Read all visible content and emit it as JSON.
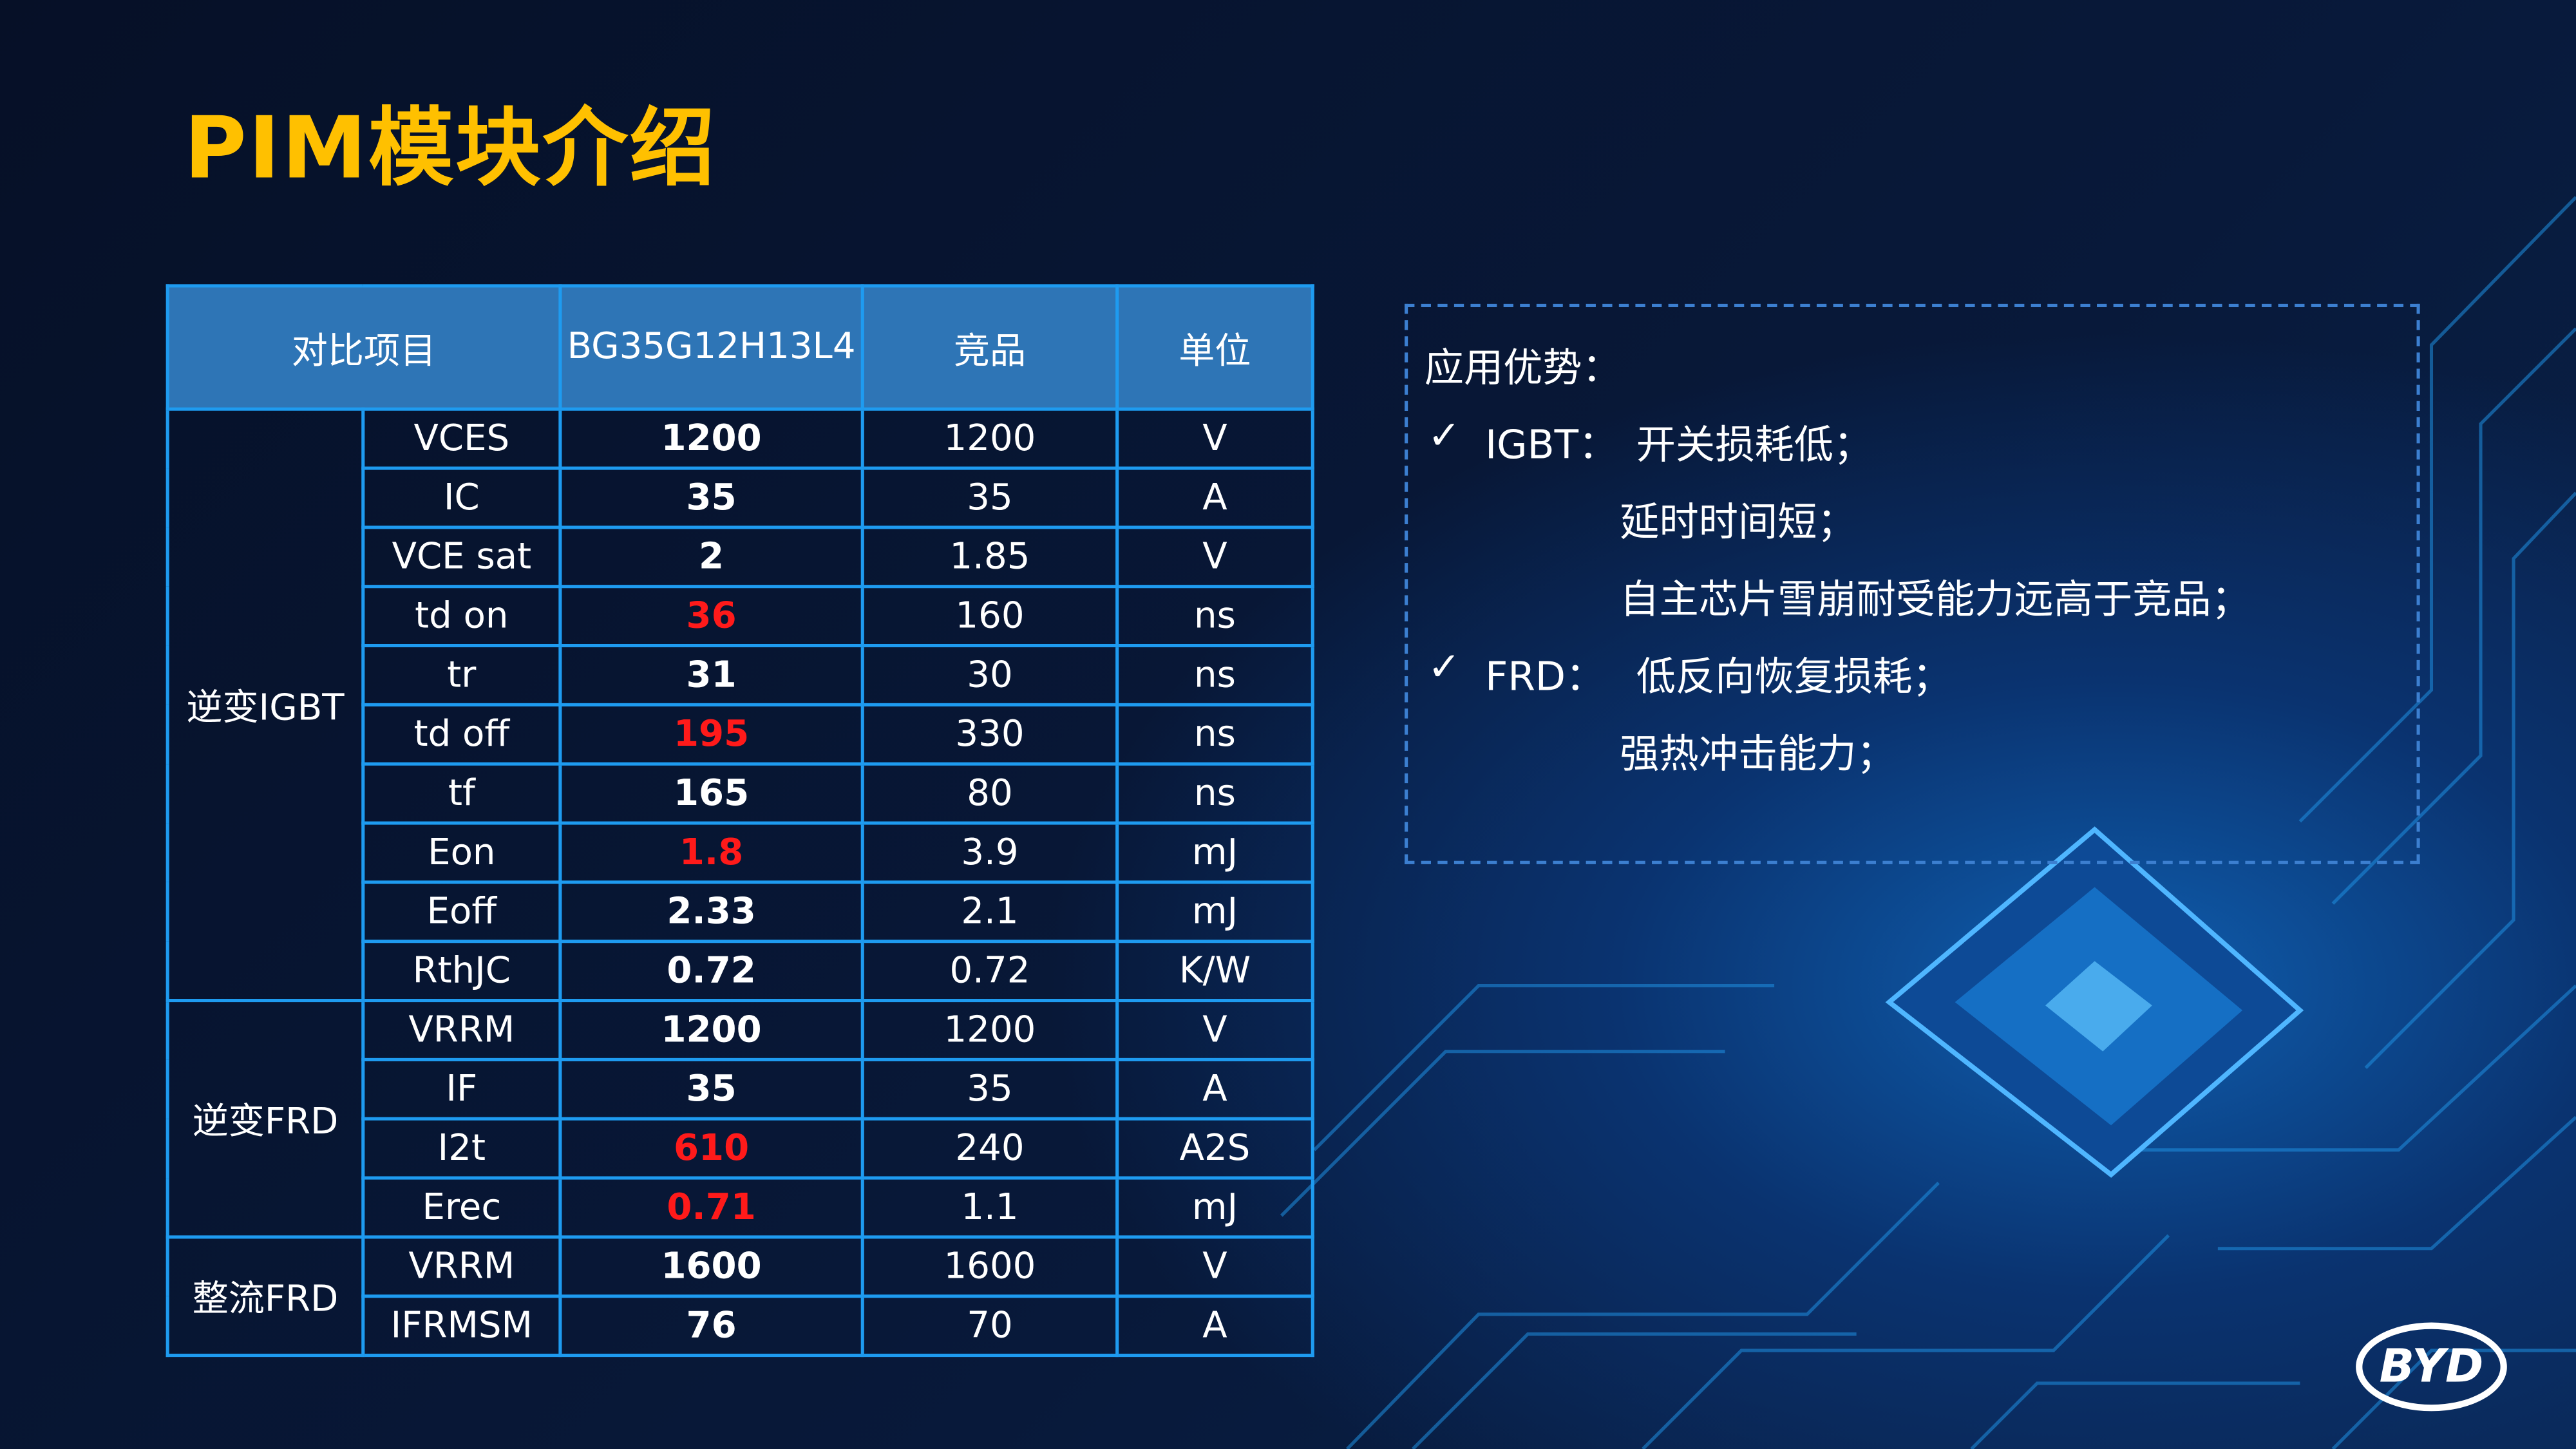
{
  "title": "PIM模块介绍",
  "table": {
    "header": [
      "对比项目",
      "BG35G12H13L4",
      "竞品",
      "单位"
    ],
    "highlight_color": "#ff1a1a",
    "groups": [
      {
        "name": "逆变IGBT",
        "rows": [
          {
            "item": "VCES",
            "value": "1200",
            "competitor": "1200",
            "unit": "V"
          },
          {
            "item": "IC",
            "value": "35",
            "competitor": "35",
            "unit": "A"
          },
          {
            "item": "VCE sat",
            "value": "2",
            "competitor": "1.85",
            "unit": "V"
          },
          {
            "item": "td on",
            "value": "36",
            "competitor": "160",
            "unit": "ns",
            "highlight": true
          },
          {
            "item": "tr",
            "value": "31",
            "competitor": "30",
            "unit": "ns"
          },
          {
            "item": "td off",
            "value": "195",
            "competitor": "330",
            "unit": "ns",
            "highlight": true
          },
          {
            "item": "tf",
            "value": "165",
            "competitor": "80",
            "unit": "ns"
          },
          {
            "item": "Eon",
            "value": "1.8",
            "competitor": "3.9",
            "unit": "mJ",
            "highlight": true
          },
          {
            "item": "Eoff",
            "value": "2.33",
            "competitor": "2.1",
            "unit": "mJ"
          },
          {
            "item": "RthJC",
            "value": "0.72",
            "competitor": "0.72",
            "unit": "K/W"
          }
        ]
      },
      {
        "name": "逆变FRD",
        "rows": [
          {
            "item": "VRRM",
            "value": "1200",
            "competitor": "1200",
            "unit": "V"
          },
          {
            "item": "IF",
            "value": "35",
            "competitor": "35",
            "unit": "A"
          },
          {
            "item": "I2t",
            "value": "610",
            "competitor": "240",
            "unit": "A2S",
            "highlight": true
          },
          {
            "item": "Erec",
            "value": "0.71",
            "competitor": "1.1",
            "unit": "mJ",
            "highlight": true
          }
        ]
      },
      {
        "name": "整流FRD",
        "rows": [
          {
            "item": "VRRM",
            "value": "1600",
            "competitor": "1600",
            "unit": "V"
          },
          {
            "item": "IFRMSM",
            "value": "76",
            "competitor": "70",
            "unit": "A"
          }
        ]
      }
    ]
  },
  "advantages": {
    "heading": "应用优势：",
    "items": [
      {
        "mark": "✓",
        "label": "IGBT：",
        "lines": [
          "开关损耗低；",
          "延时时间短；",
          "自主芯片雪崩耐受能力远高于竞品；"
        ]
      },
      {
        "mark": "✓",
        "label": "FRD：",
        "lines": [
          "低反向恢复损耗；",
          "强热冲击能力；"
        ]
      }
    ]
  },
  "logo": "BYD"
}
